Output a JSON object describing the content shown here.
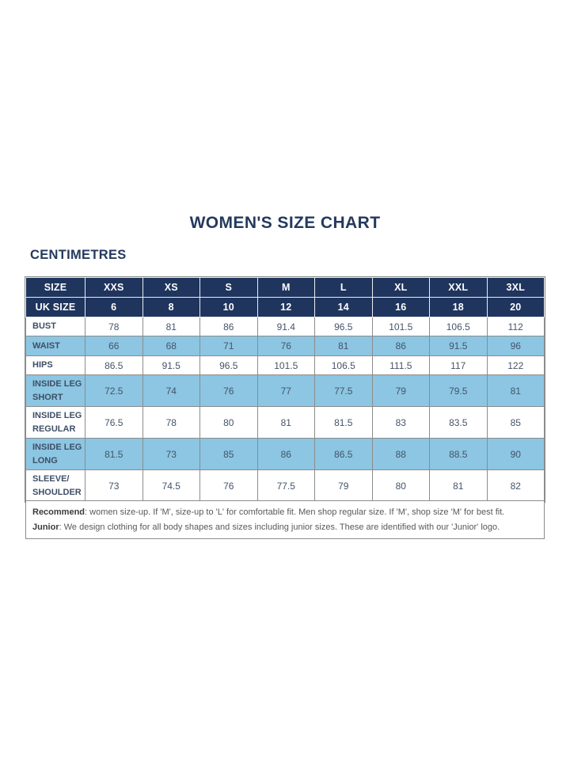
{
  "page": {
    "title": "WOMEN'S SIZE CHART",
    "unit_label": "CENTIMETRES"
  },
  "colors": {
    "header_navy": "#1f355e",
    "row_highlight_blue": "#8cc6e2",
    "title_navy": "#243a5e",
    "grid_gray": "#8c8c8c"
  },
  "table": {
    "header": [
      "SIZE",
      "XXS",
      "XS",
      "S",
      "M",
      "L",
      "XL",
      "XXL",
      "3XL"
    ],
    "uk_size": {
      "label": "UK SIZE",
      "values": [
        "6",
        "8",
        "10",
        "12",
        "14",
        "16",
        "18",
        "20"
      ]
    },
    "rows": [
      {
        "label": "BUST",
        "highlight": false,
        "values": [
          "78",
          "81",
          "86",
          "91.4",
          "96.5",
          "101.5",
          "106.5",
          "112"
        ]
      },
      {
        "label": "WAIST",
        "highlight": true,
        "values": [
          "66",
          "68",
          "71",
          "76",
          "81",
          "86",
          "91.5",
          "96"
        ]
      },
      {
        "label": "HIPS",
        "highlight": false,
        "values": [
          "86.5",
          "91.5",
          "96.5",
          "101.5",
          "106.5",
          "111.5",
          "117",
          "122"
        ]
      },
      {
        "label": "INSIDE LEG\nSHORT",
        "highlight": true,
        "values": [
          "72.5",
          "74",
          "76",
          "77",
          "77.5",
          "79",
          "79.5",
          "81"
        ]
      },
      {
        "label": "INSIDE LEG\nREGULAR",
        "highlight": false,
        "values": [
          "76.5",
          "78",
          "80",
          "81",
          "81.5",
          "83",
          "83.5",
          "85"
        ]
      },
      {
        "label": "INSIDE LEG\nLONG",
        "highlight": true,
        "values": [
          "81.5",
          "73",
          "85",
          "86",
          "86.5",
          "88",
          "88.5",
          "90"
        ]
      },
      {
        "label": "SLEEVE/\nSHOULDER",
        "highlight": false,
        "values": [
          "73",
          "74.5",
          "76",
          "77.5",
          "79",
          "80",
          "81",
          "82"
        ]
      }
    ]
  },
  "footnote": [
    {
      "bold": "Recommend",
      "text": ": women size-up. If 'M', size-up to 'L' for comfortable fit. Men shop regular size. If 'M', shop size 'M' for best fit."
    },
    {
      "bold": "Junior",
      "text": ": We design clothing for all body shapes and sizes including junior sizes. These are identified with our 'Junior' logo."
    }
  ],
  "chart_data": {
    "type": "table",
    "title": "WOMEN'S SIZE CHART",
    "unit": "CENTIMETRES",
    "columns": [
      "SIZE",
      "XXS",
      "XS",
      "S",
      "M",
      "L",
      "XL",
      "XXL",
      "3XL"
    ],
    "rows": [
      [
        "UK SIZE",
        6,
        8,
        10,
        12,
        14,
        16,
        18,
        20
      ],
      [
        "BUST",
        78,
        81,
        86,
        91.4,
        96.5,
        101.5,
        106.5,
        112
      ],
      [
        "WAIST",
        66,
        68,
        71,
        76,
        81,
        86,
        91.5,
        96
      ],
      [
        "HIPS",
        86.5,
        91.5,
        96.5,
        101.5,
        106.5,
        111.5,
        117,
        122
      ],
      [
        "INSIDE LEG SHORT",
        72.5,
        74,
        76,
        77,
        77.5,
        79,
        79.5,
        81
      ],
      [
        "INSIDE LEG REGULAR",
        76.5,
        78,
        80,
        81,
        81.5,
        83,
        83.5,
        85
      ],
      [
        "INSIDE LEG LONG",
        81.5,
        73,
        85,
        86,
        86.5,
        88,
        88.5,
        90
      ],
      [
        "SLEEVE/SHOULDER",
        73,
        74.5,
        76,
        77.5,
        79,
        80,
        81,
        82
      ]
    ]
  }
}
